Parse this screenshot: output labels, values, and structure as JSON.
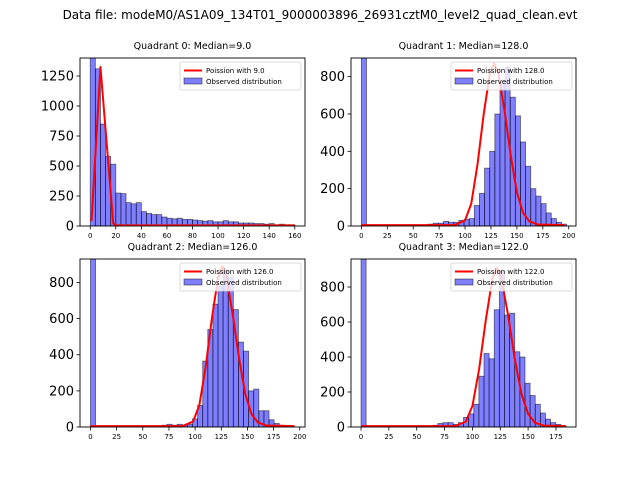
{
  "suptitle": "Data file: modeM0/AS1A09_134T01_9000003896_26931cztM0_level2_quad_clean.evt",
  "chart_data": [
    {
      "type": "bar",
      "title": "Quadrant 0: Median=9.0",
      "xlabel": "",
      "ylabel": "",
      "xlim": [
        -8,
        168
      ],
      "ylim": [
        0,
        1400
      ],
      "xticks": [
        0,
        20,
        40,
        60,
        80,
        100,
        120,
        140,
        160
      ],
      "yticks": [
        0,
        250,
        500,
        750,
        1000,
        1250
      ],
      "legend_location": "top-right",
      "bin_start": 0,
      "bin_width": 4,
      "observed": {
        "name": "Observed distribution",
        "color": "#0000ff",
        "alpha": 0.5,
        "values": [
          1400,
          1310,
          850,
          580,
          515,
          275,
          270,
          195,
          185,
          195,
          120,
          105,
          95,
          95,
          75,
          65,
          60,
          65,
          55,
          55,
          50,
          45,
          40,
          45,
          35,
          35,
          45,
          35,
          35,
          25,
          25,
          25,
          20,
          20,
          15,
          20,
          10,
          15,
          10,
          10
        ]
      },
      "poisson": {
        "name": "Poission with 9.0",
        "color": "#ff0000",
        "x": [
          1,
          8,
          18,
          20,
          160
        ],
        "y": [
          40,
          1325,
          20,
          5,
          5
        ]
      }
    },
    {
      "type": "bar",
      "title": "Quadrant 1: Median=128.0",
      "xlabel": "",
      "ylabel": "",
      "xlim": [
        -10,
        207
      ],
      "ylim": [
        0,
        900
      ],
      "xticks": [
        0,
        25,
        50,
        75,
        100,
        125,
        150,
        175,
        200
      ],
      "yticks": [
        0,
        200,
        400,
        600,
        800
      ],
      "legend_location": "top-right",
      "bin_start": 0,
      "bin_width": 4.95,
      "observed": {
        "name": "Observed distribution",
        "color": "#0000ff",
        "alpha": 0.5,
        "values": [
          900,
          0,
          0,
          0,
          0,
          0,
          0,
          0,
          0,
          0,
          0,
          2,
          5,
          10,
          15,
          15,
          25,
          20,
          20,
          30,
          35,
          40,
          110,
          175,
          310,
          400,
          600,
          770,
          850,
          690,
          590,
          450,
          320,
          200,
          160,
          120,
          70,
          40,
          20,
          10
        ]
      },
      "poisson": {
        "name": "Poission with 128.0",
        "color": "#ff0000",
        "x": [
          0,
          90,
          100,
          106,
          112,
          118,
          124,
          128,
          132,
          138,
          144,
          150,
          156,
          162,
          170,
          196
        ],
        "y": [
          5,
          5,
          30,
          120,
          330,
          600,
          820,
          870,
          820,
          620,
          380,
          180,
          70,
          25,
          8,
          5
        ]
      }
    },
    {
      "type": "bar",
      "title": "Quadrant 2: Median=126.0",
      "xlabel": "",
      "ylabel": "",
      "xlim": [
        -10,
        205
      ],
      "ylim": [
        0,
        930
      ],
      "xticks": [
        0,
        25,
        50,
        75,
        100,
        125,
        150,
        175,
        200
      ],
      "yticks": [
        0,
        200,
        400,
        600,
        800
      ],
      "legend_location": "top-right",
      "bin_start": 0,
      "bin_width": 4.875,
      "observed": {
        "name": "Observed distribution",
        "color": "#0000ff",
        "alpha": 0.5,
        "values": [
          930,
          0,
          0,
          0,
          0,
          0,
          0,
          0,
          0,
          0,
          0,
          0,
          2,
          5,
          10,
          15,
          10,
          15,
          10,
          15,
          45,
          120,
          365,
          540,
          680,
          780,
          870,
          830,
          650,
          470,
          420,
          200,
          210,
          90,
          90,
          40,
          20,
          10,
          5,
          2
        ]
      },
      "poisson": {
        "name": "Poission with 126.0",
        "color": "#ff0000",
        "x": [
          0,
          88,
          98,
          104,
          110,
          116,
          122,
          126,
          130,
          136,
          142,
          148,
          154,
          160,
          168,
          195
        ],
        "y": [
          5,
          5,
          30,
          120,
          330,
          600,
          830,
          890,
          830,
          620,
          380,
          180,
          70,
          25,
          8,
          5
        ]
      }
    },
    {
      "type": "bar",
      "title": "Quadrant 3: Median=122.0",
      "xlabel": "",
      "ylabel": "",
      "xlim": [
        -9,
        193
      ],
      "ylim": [
        0,
        960
      ],
      "xticks": [
        0,
        25,
        50,
        75,
        100,
        125,
        150,
        175
      ],
      "yticks": [
        0,
        200,
        400,
        600,
        800
      ],
      "legend_location": "top-right",
      "bin_start": 0,
      "bin_width": 4.6,
      "observed": {
        "name": "Observed distribution",
        "color": "#0000ff",
        "alpha": 0.5,
        "values": [
          960,
          0,
          0,
          0,
          0,
          0,
          0,
          0,
          0,
          0,
          0,
          0,
          0,
          0,
          10,
          20,
          25,
          25,
          15,
          25,
          55,
          75,
          130,
          290,
          420,
          390,
          670,
          890,
          640,
          650,
          430,
          400,
          250,
          180,
          130,
          80,
          45,
          25,
          15,
          5
        ]
      },
      "poisson": {
        "name": "Poission with 122.0",
        "color": "#ff0000",
        "x": [
          0,
          84,
          94,
          100,
          106,
          112,
          118,
          122,
          126,
          132,
          138,
          144,
          150,
          156,
          164,
          184
        ],
        "y": [
          5,
          5,
          30,
          120,
          330,
          610,
          850,
          910,
          850,
          640,
          390,
          190,
          75,
          25,
          8,
          5
        ]
      }
    }
  ]
}
